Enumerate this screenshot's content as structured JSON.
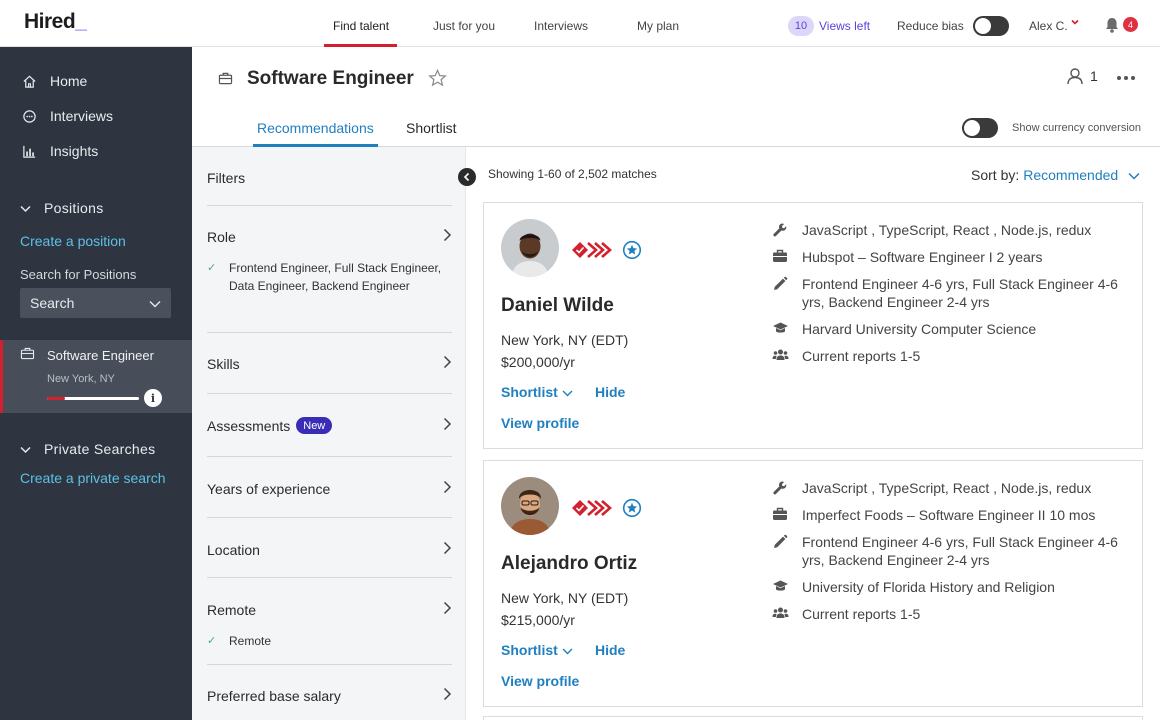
{
  "app": {
    "logo": "Hired",
    "logo_suffix": "_"
  },
  "topnav": [
    {
      "label": "Find talent"
    },
    {
      "label": "Just for you"
    },
    {
      "label": "Interviews"
    },
    {
      "label": "My plan"
    }
  ],
  "header": {
    "views_count": "10",
    "views_label": "Views left",
    "reduce_bias_label": "Reduce bias",
    "reduce_bias_on": false,
    "user_name": "Alex C.",
    "notifications_count": "4"
  },
  "sidebar": {
    "items": [
      {
        "label": "Home",
        "icon": "home-icon"
      },
      {
        "label": "Interviews",
        "icon": "chat-icon"
      },
      {
        "label": "Insights",
        "icon": "bar-chart-icon"
      }
    ],
    "positions_heading": "Positions",
    "create_position": "Create a position",
    "search_label": "Search for Positions",
    "search_placeholder": "Search",
    "active_position": {
      "title": "Software Engineer",
      "location": "New York, NY",
      "progress": 0.2
    },
    "private_heading": "Private Searches",
    "create_private": "Create a private search"
  },
  "main": {
    "title": "Software Engineer",
    "member_count": "1",
    "tabs": [
      {
        "label": "Recommendations"
      },
      {
        "label": "Shortlist"
      }
    ],
    "currency_label": "Show currency conversion",
    "results_text": "Showing 1-60 of 2,502 matches",
    "sort_label": "Sort by:",
    "sort_value": "Recommended"
  },
  "filters": {
    "title": "Filters",
    "rows": [
      {
        "label": "Role",
        "selected": "Frontend Engineer, Full Stack Engineer, Data Engineer, Backend Engineer"
      },
      {
        "label": "Skills"
      },
      {
        "label": "Assessments",
        "badge": "New"
      },
      {
        "label": "Years of experience"
      },
      {
        "label": "Location"
      },
      {
        "label": "Remote",
        "selected": "Remote"
      },
      {
        "label": "Preferred base salary"
      }
    ]
  },
  "candidates": [
    {
      "name": "Daniel Wilde",
      "location": "New York, NY (EDT)",
      "salary": "$200,000/yr",
      "shortlist_label": "Shortlist",
      "hide_label": "Hide",
      "view_profile_label": "View profile",
      "skills": "JavaScript , TypeScript, React , Node.js, redux",
      "experience": "Hubspot – Software Engineer I 2 years",
      "roles": "Frontend Engineer 4-6 yrs, Full Stack Engineer 4-6 yrs, Backend Engineer 2-4 yrs",
      "education": "Harvard University Computer Science",
      "reports": "Current reports 1-5"
    },
    {
      "name": "Alejandro Ortiz",
      "location": "New York, NY (EDT)",
      "salary": "$215,000/yr",
      "shortlist_label": "Shortlist",
      "hide_label": "Hide",
      "view_profile_label": "View profile",
      "skills": "JavaScript , TypeScript, React , Node.js, redux",
      "experience": "Imperfect Foods – Software Engineer II 10 mos",
      "roles": "Frontend Engineer 4-6 yrs, Full Stack Engineer 4-6 yrs, Backend Engineer 2-4 yrs",
      "education": "University of Florida History and Religion",
      "reports": "Current reports 1-5"
    }
  ],
  "colors": {
    "accent": "#1f7fbf",
    "brand_red": "#d41f2f",
    "sidebar_bg": "#2e3541",
    "link_cyan": "#5fc0e6"
  }
}
